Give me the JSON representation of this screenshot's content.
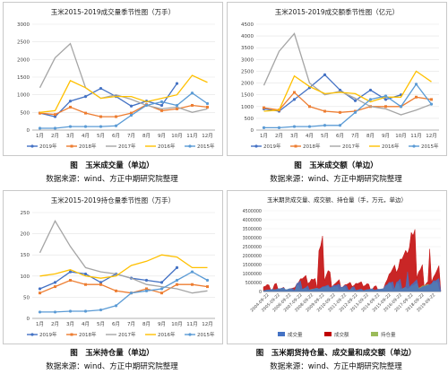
{
  "months": [
    "1月",
    "2月",
    "3月",
    "4月",
    "5月",
    "6月",
    "7月",
    "8月",
    "9月",
    "10月",
    "11月",
    "12月"
  ],
  "colors": {
    "2019": "#4472c4",
    "2018": "#ed7d31",
    "2017": "#a5a5a5",
    "2016": "#ffc000",
    "2015": "#5b9bd5"
  },
  "chart_data": [
    {
      "type": "line",
      "title": "玉米2015-2019成交量季节性图（万手）",
      "ylim": [
        0,
        3000
      ],
      "yticks": [
        0,
        500,
        1000,
        1500,
        2000,
        2500,
        3000
      ],
      "series": [
        {
          "name": "2019年",
          "values": [
            480,
            380,
            820,
            950,
            1180,
            950,
            680,
            820,
            700,
            1320,
            null,
            null
          ]
        },
        {
          "name": "2018年",
          "values": [
            480,
            440,
            650,
            480,
            380,
            380,
            480,
            720,
            550,
            600,
            700,
            650
          ]
        },
        {
          "name": "2017年",
          "values": [
            1200,
            2050,
            2450,
            1200,
            900,
            1000,
            870,
            700,
            600,
            650,
            500,
            600
          ]
        },
        {
          "name": "2016年",
          "values": [
            500,
            550,
            1400,
            1200,
            900,
            950,
            950,
            800,
            900,
            1000,
            1550,
            1350
          ]
        },
        {
          "name": "2015年",
          "values": [
            50,
            50,
            100,
            100,
            100,
            120,
            420,
            700,
            800,
            700,
            1050,
            750
          ]
        }
      ],
      "caption": "图　玉米成交量（单边）",
      "source": "数据来源：wind、方正中期研究院整理"
    },
    {
      "type": "line",
      "title": "玉米2015-2019成交额季节性图（亿元）",
      "ylim": [
        0,
        4500
      ],
      "yticks": [
        0,
        500,
        1000,
        1500,
        2000,
        2500,
        3000,
        3500,
        4000,
        4500
      ],
      "series": [
        {
          "name": "2019年",
          "values": [
            900,
            800,
            1300,
            1800,
            2350,
            1700,
            1250,
            1700,
            1300,
            1500,
            null,
            null
          ]
        },
        {
          "name": "2018年",
          "values": [
            950,
            850,
            1600,
            1000,
            800,
            750,
            800,
            1000,
            1000,
            1000,
            1400,
            1300
          ]
        },
        {
          "name": "2017年",
          "values": [
            1900,
            3350,
            4100,
            2000,
            1500,
            1650,
            1350,
            1000,
            900,
            650,
            850,
            1100
          ]
        },
        {
          "name": "2016年",
          "values": [
            800,
            850,
            2300,
            1850,
            1550,
            1600,
            1550,
            1200,
            1400,
            1400,
            2500,
            2050
          ]
        },
        {
          "name": "2015年",
          "values": [
            100,
            100,
            150,
            150,
            200,
            200,
            750,
            1300,
            1450,
            1000,
            1950,
            1100
          ]
        }
      ],
      "caption": "图　玉米成交额（单边）",
      "source": "数据来源：wind、方正中期研究院整理"
    },
    {
      "type": "line",
      "title": "玉米2015-2019持仓量季节性图（万手）",
      "ylim": [
        0,
        250
      ],
      "yticks": [
        0,
        50,
        100,
        150,
        200,
        250
      ],
      "series": [
        {
          "name": "2019年",
          "values": [
            70,
            85,
            110,
            105,
            85,
            105,
            95,
            90,
            85,
            120,
            null,
            null
          ]
        },
        {
          "name": "2018年",
          "values": [
            60,
            75,
            90,
            80,
            80,
            65,
            60,
            70,
            60,
            80,
            80,
            75
          ]
        },
        {
          "name": "2017年",
          "values": [
            155,
            230,
            170,
            120,
            110,
            105,
            95,
            80,
            75,
            70,
            60,
            65
          ]
        },
        {
          "name": "2016年",
          "values": [
            100,
            105,
            115,
            100,
            95,
            100,
            125,
            135,
            150,
            145,
            120,
            120
          ]
        },
        {
          "name": "2015年",
          "values": [
            15,
            15,
            17,
            17,
            20,
            30,
            60,
            65,
            70,
            90,
            110,
            90
          ]
        }
      ],
      "caption": "图　玉米持仓量（单边）",
      "source": "数据来源：wind、方正中期研究院整理"
    },
    {
      "type": "area",
      "title": "玉米期货成交量、成交额、持仓量（手，万元，单边）",
      "ylim": [
        0,
        4500000
      ],
      "yticks": [
        0,
        500000,
        1000000,
        1500000,
        2000000,
        2500000,
        3000000,
        3500000,
        4000000,
        4500000
      ],
      "x_dates": [
        "2004-09-22",
        "2005-09-22",
        "2006-09-22",
        "2007-09-22",
        "2008-09-22",
        "2009-09-22",
        "2010-09-22",
        "2011-09-22",
        "2012-09-22",
        "2013-09-22",
        "2014-09-22",
        "2015-09-22",
        "2016-09-22",
        "2017-09-22",
        "2018-09-22",
        "2019-09-22"
      ],
      "series": [
        {
          "name": "成交量",
          "peaks": [
            200000,
            250000,
            180000,
            600000,
            350000,
            500000,
            450000,
            350000,
            300000,
            250000,
            200000,
            600000,
            700000,
            1200000,
            500000,
            800000
          ]
        },
        {
          "name": "成交额",
          "peaks": [
            400000,
            500000,
            350000,
            1100000,
            800000,
            3100000,
            1200000,
            700000,
            600000,
            450000,
            350000,
            2300000,
            2800000,
            3800000,
            1500000,
            2600000
          ]
        },
        {
          "name": "持仓量",
          "peaks": [
            150000,
            200000,
            150000,
            400000,
            300000,
            350000,
            300000,
            250000,
            200000,
            180000,
            150000,
            450000,
            500000,
            700000,
            500000,
            600000
          ]
        }
      ],
      "series_colors": [
        "#4472c4",
        "#c00000",
        "#9bbb59"
      ],
      "caption": "图　玉米期货持仓量、成交量和成交额（单边）",
      "source": "数据来源：wind、方正中期研究院整理"
    }
  ]
}
